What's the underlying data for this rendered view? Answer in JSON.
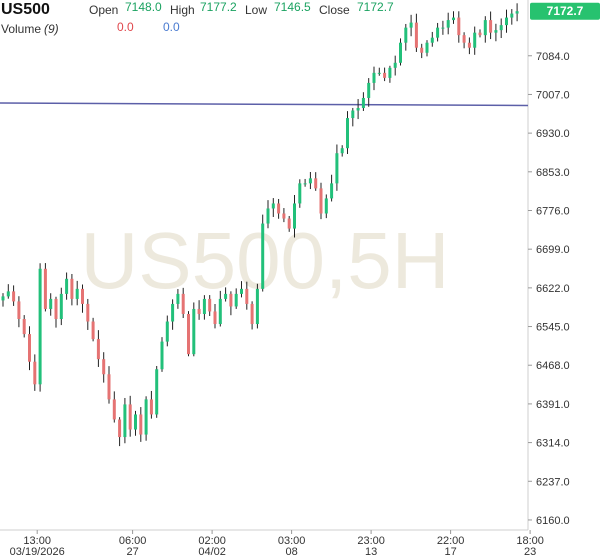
{
  "header": {
    "symbol": "US500",
    "open_label": "Open",
    "open_value": "7148.0",
    "high_label": "High",
    "high_value": "7177.2",
    "low_label": "Low",
    "low_value": "7146.5",
    "close_label": "Close",
    "close_value": "7172.7",
    "volume_label": "Volume",
    "volume_period": "(9)",
    "volume_value_1": "0.0",
    "volume_value_2": "0.0"
  },
  "watermark": "US500,5H",
  "price_tag": "7172.7",
  "colors": {
    "up": "#22c07a",
    "down": "#e57373",
    "hline": "#5c5fa8",
    "tag": "#27c26f"
  },
  "chart_data": {
    "type": "candlestick",
    "title": "US500",
    "ylim": [
      6140,
      7195
    ],
    "y_ticks": [
      6160.0,
      6237.0,
      6314.0,
      6391.0,
      6468.0,
      6545.0,
      6622.0,
      6699.0,
      6776.0,
      6853.0,
      6930.0,
      7007.0,
      7084.0
    ],
    "y_tick_labels": [
      "6160.0",
      "6237.0",
      "6314.0",
      "6391.0",
      "6468.0",
      "6545.0",
      "6622.0",
      "6699.0",
      "6776.0",
      "6853.0",
      "6930.0",
      "7007.0",
      "7084.0"
    ],
    "x_ticks": [
      {
        "time": "13:00",
        "date": "03/19/2026",
        "index": 4
      },
      {
        "time": "06:00",
        "date": "27",
        "index": 22
      },
      {
        "time": "02:00",
        "date": "04/02",
        "index": 37
      },
      {
        "time": "03:00",
        "date": "08",
        "index": 52
      },
      {
        "time": "23:00",
        "date": "13",
        "index": 67
      },
      {
        "time": "22:00",
        "date": "17",
        "index": 82
      },
      {
        "time": "18:00",
        "date": "23",
        "index": 97
      }
    ],
    "horizontal_line": 6988,
    "last_price": 7172.7,
    "closes": [
      6605,
      6615,
      6595,
      6560,
      6530,
      6475,
      6430,
      6660,
      6580,
      6600,
      6560,
      6610,
      6640,
      6600,
      6620,
      6590,
      6555,
      6520,
      6480,
      6450,
      6400,
      6360,
      6325,
      6390,
      6340,
      6370,
      6330,
      6400,
      6370,
      6460,
      6515,
      6555,
      6590,
      6610,
      6570,
      6490,
      6580,
      6570,
      6600,
      6575,
      6550,
      6600,
      6610,
      6585,
      6610,
      6620,
      6590,
      6550,
      6620,
      6750,
      6780,
      6790,
      6770,
      6760,
      6740,
      6790,
      6830,
      6830,
      6840,
      6820,
      6770,
      6800,
      6830,
      6890,
      6900,
      6960,
      6975,
      6980,
      7000,
      7030,
      7050,
      7050,
      7040,
      7060,
      7070,
      7110,
      7140,
      7150,
      7100,
      7090,
      7110,
      7120,
      7140,
      7140,
      7155,
      7160,
      7125,
      7110,
      7100,
      7130,
      7125,
      7155,
      7130,
      7135,
      7145,
      7160,
      7168,
      7172.7
    ]
  }
}
